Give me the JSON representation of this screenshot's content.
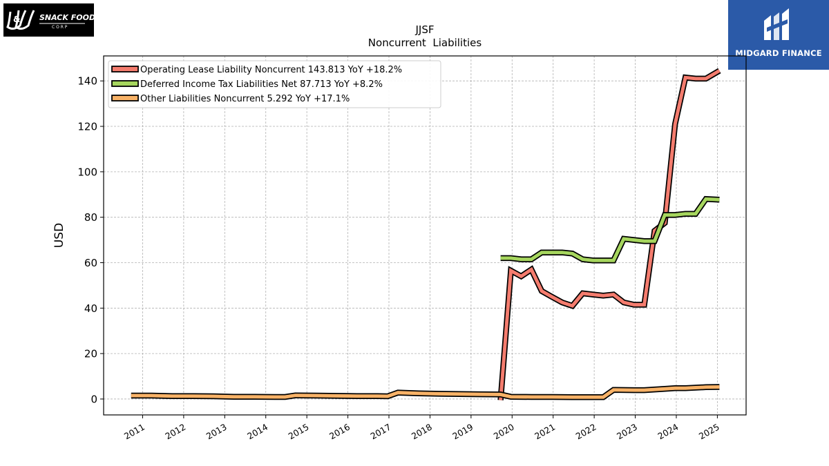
{
  "brand_left": {
    "logo_text": "J&J SNACK FOODS CORP.",
    "icon": "jj-snack-foods-logo"
  },
  "brand_right": {
    "name": "MIDGARD FINANCE",
    "icon": "midgard-finance-logo",
    "color": "#2b5aa8"
  },
  "chart_data": {
    "type": "line",
    "title": "JJSF",
    "subtitle": "Noncurrent  Liabilities",
    "ylabel": "USD",
    "xlabel": "",
    "ylim": [
      -7,
      151
    ],
    "xlim": [
      2010.05,
      2025.7
    ],
    "yticks": [
      0,
      20,
      40,
      60,
      80,
      100,
      120,
      140
    ],
    "xticks": [
      "2011",
      "2012",
      "2013",
      "2014",
      "2015",
      "2016",
      "2017",
      "2018",
      "2019",
      "2020",
      "2021",
      "2022",
      "2023",
      "2024",
      "2025"
    ],
    "grid": true,
    "legend_position": "top-left",
    "series": [
      {
        "name": "Operating Lease Liability Noncurrent",
        "legend": "Operating Lease Liability Noncurrent  143.813 YoY +18.2%",
        "color": "#f47c6e",
        "points": [
          [
            2019.72,
            -0.5
          ],
          [
            2019.97,
            56.5
          ],
          [
            2020.22,
            54.0
          ],
          [
            2020.47,
            57.0
          ],
          [
            2020.72,
            47.5
          ],
          [
            2020.97,
            45.0
          ],
          [
            2021.22,
            42.5
          ],
          [
            2021.47,
            41.0
          ],
          [
            2021.72,
            46.5
          ],
          [
            2021.97,
            46.0
          ],
          [
            2022.22,
            45.5
          ],
          [
            2022.47,
            46.0
          ],
          [
            2022.72,
            42.5
          ],
          [
            2022.97,
            41.5
          ],
          [
            2023.22,
            41.5
          ],
          [
            2023.47,
            74.0
          ],
          [
            2023.72,
            77.5
          ],
          [
            2023.97,
            121.0
          ],
          [
            2024.22,
            141.5
          ],
          [
            2024.47,
            141.0
          ],
          [
            2024.72,
            141.0
          ],
          [
            2025.05,
            144.5
          ]
        ]
      },
      {
        "name": "Deferred Income Tax Liabilities Net",
        "legend": "Deferred Income Tax Liabilities Net  87.713 YoY +8.2%",
        "color": "#a6d65e",
        "points": [
          [
            2019.72,
            62.0
          ],
          [
            2019.97,
            62.0
          ],
          [
            2020.22,
            61.5
          ],
          [
            2020.47,
            61.5
          ],
          [
            2020.72,
            64.5
          ],
          [
            2020.97,
            64.5
          ],
          [
            2021.22,
            64.5
          ],
          [
            2021.47,
            64.0
          ],
          [
            2021.72,
            61.5
          ],
          [
            2021.97,
            61.0
          ],
          [
            2022.22,
            61.0
          ],
          [
            2022.47,
            61.0
          ],
          [
            2022.72,
            70.5
          ],
          [
            2022.97,
            70.0
          ],
          [
            2023.22,
            69.5
          ],
          [
            2023.47,
            69.5
          ],
          [
            2023.72,
            81.0
          ],
          [
            2023.97,
            81.0
          ],
          [
            2024.22,
            81.5
          ],
          [
            2024.47,
            81.5
          ],
          [
            2024.72,
            88.0
          ],
          [
            2025.05,
            87.7
          ]
        ]
      },
      {
        "name": "Other Liabilities Noncurrent",
        "legend": "Other Liabilities Noncurrent  5.292 YoY +17.1%",
        "color": "#f8b267",
        "points": [
          [
            2010.72,
            1.5
          ],
          [
            2011.22,
            1.5
          ],
          [
            2011.72,
            1.3
          ],
          [
            2012.22,
            1.3
          ],
          [
            2012.72,
            1.2
          ],
          [
            2013.22,
            1.0
          ],
          [
            2013.72,
            1.0
          ],
          [
            2014.22,
            0.9
          ],
          [
            2014.47,
            0.9
          ],
          [
            2014.72,
            1.6
          ],
          [
            2015.22,
            1.5
          ],
          [
            2015.72,
            1.4
          ],
          [
            2016.22,
            1.3
          ],
          [
            2016.72,
            1.3
          ],
          [
            2016.97,
            1.2
          ],
          [
            2017.22,
            2.8
          ],
          [
            2017.72,
            2.5
          ],
          [
            2018.22,
            2.3
          ],
          [
            2018.72,
            2.2
          ],
          [
            2019.22,
            2.1
          ],
          [
            2019.72,
            2.0
          ],
          [
            2019.97,
            1.0
          ],
          [
            2020.47,
            0.9
          ],
          [
            2020.97,
            0.9
          ],
          [
            2021.47,
            0.8
          ],
          [
            2021.97,
            0.8
          ],
          [
            2022.22,
            0.8
          ],
          [
            2022.47,
            4.0
          ],
          [
            2022.97,
            3.9
          ],
          [
            2023.22,
            3.9
          ],
          [
            2023.72,
            4.5
          ],
          [
            2023.97,
            4.8
          ],
          [
            2024.22,
            4.8
          ],
          [
            2024.72,
            5.2
          ],
          [
            2025.05,
            5.3
          ]
        ]
      }
    ]
  }
}
